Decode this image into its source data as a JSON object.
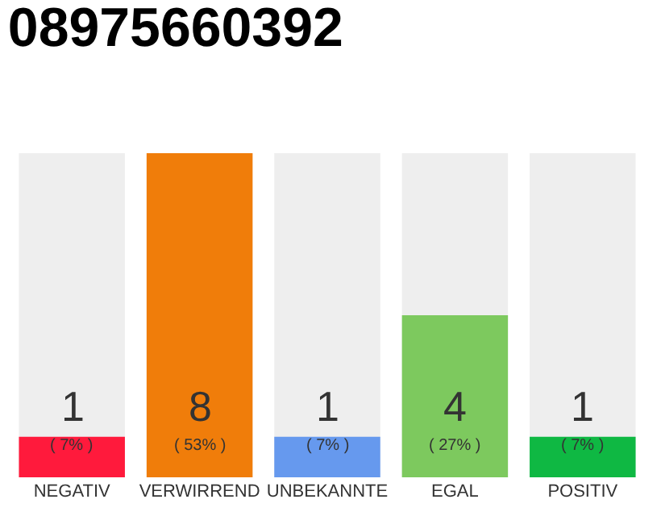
{
  "chart_data": {
    "type": "bar",
    "title": "08975660392",
    "categories": [
      "NEGATIV",
      "VERWIRREND",
      "UNBEKANNTE",
      "EGAL",
      "POSITIV"
    ],
    "values": [
      1,
      8,
      1,
      4,
      1
    ],
    "colors": [
      "#ff1a3c",
      "#f07d0a",
      "#6699ee",
      "#7dc95e",
      "#0fb843"
    ],
    "ylim": [
      0,
      8
    ],
    "tick_labels": "x",
    "data_labels": true,
    "grid": false,
    "legend": false,
    "annotations": [
      "( 7% )",
      "( 53% )",
      "( 7% )",
      "( 27% )",
      "( 7% )"
    ]
  }
}
